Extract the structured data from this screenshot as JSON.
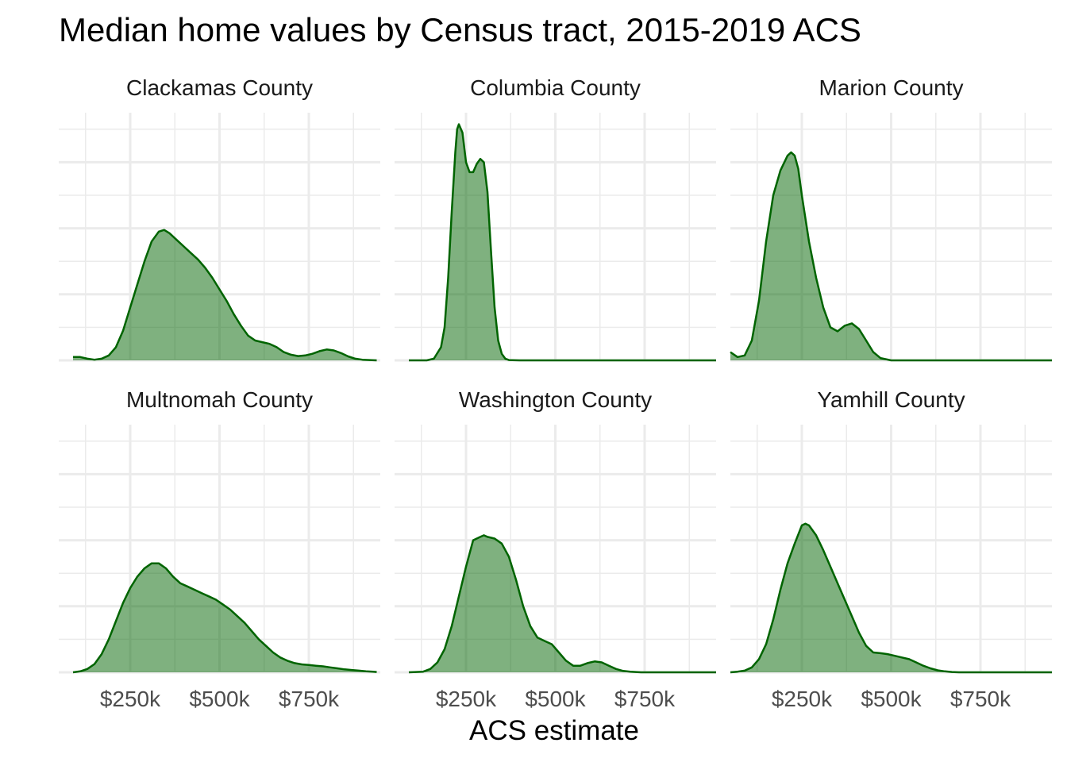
{
  "chart_data": {
    "type": "area",
    "subtype": "faceted-density",
    "title": "Median home values by Census tract, 2015-2019 ACS",
    "xlabel": "ACS estimate",
    "ylabel": "",
    "xlim": [
      50000,
      950000
    ],
    "ylim": [
      0,
      7.5
    ],
    "x_ticks": [
      250000,
      500000,
      750000
    ],
    "x_tick_labels": [
      "$250k",
      "$500k",
      "$750k"
    ],
    "y_axis_labels_shown": false,
    "grid": true,
    "fill_color": "#006400",
    "fill_opacity": 0.5,
    "line_color": "#006400",
    "facet_layout": {
      "rows": 2,
      "cols": 3
    },
    "panels": [
      {
        "name": "Clackamas County",
        "x": [
          90000,
          110000,
          130000,
          150000,
          170000,
          190000,
          210000,
          230000,
          250000,
          270000,
          290000,
          310000,
          330000,
          345000,
          360000,
          380000,
          400000,
          420000,
          440000,
          460000,
          480000,
          500000,
          520000,
          540000,
          560000,
          580000,
          600000,
          620000,
          640000,
          660000,
          680000,
          700000,
          720000,
          740000,
          760000,
          780000,
          800000,
          820000,
          840000,
          860000,
          880000,
          900000,
          920000,
          940000
        ],
        "y": [
          0.1,
          0.1,
          0.05,
          0.02,
          0.05,
          0.15,
          0.4,
          0.9,
          1.6,
          2.3,
          3.0,
          3.6,
          3.9,
          3.95,
          3.85,
          3.65,
          3.45,
          3.25,
          3.05,
          2.8,
          2.5,
          2.15,
          1.8,
          1.4,
          1.05,
          0.75,
          0.6,
          0.55,
          0.5,
          0.4,
          0.25,
          0.17,
          0.13,
          0.15,
          0.2,
          0.28,
          0.33,
          0.3,
          0.22,
          0.12,
          0.05,
          0.02,
          0.01,
          0.0
        ]
      },
      {
        "name": "Columbia County",
        "x": [
          90000,
          140000,
          160000,
          180000,
          190000,
          200000,
          210000,
          220000,
          225000,
          230000,
          240000,
          250000,
          260000,
          270000,
          280000,
          290000,
          300000,
          310000,
          320000,
          330000,
          340000,
          350000,
          360000,
          370000,
          400000,
          950000
        ],
        "y": [
          0.0,
          0.0,
          0.05,
          0.4,
          1.0,
          2.5,
          4.5,
          6.3,
          7.0,
          7.15,
          6.9,
          6.0,
          5.7,
          5.7,
          5.95,
          6.1,
          6.0,
          5.1,
          3.3,
          1.6,
          0.6,
          0.2,
          0.05,
          0.01,
          0.0,
          0.0
        ]
      },
      {
        "name": "Marion County",
        "x": [
          50000,
          70000,
          90000,
          110000,
          130000,
          150000,
          170000,
          190000,
          210000,
          220000,
          230000,
          240000,
          250000,
          270000,
          290000,
          310000,
          330000,
          350000,
          370000,
          390000,
          410000,
          430000,
          450000,
          470000,
          500000,
          950000
        ],
        "y": [
          0.25,
          0.1,
          0.15,
          0.6,
          1.8,
          3.6,
          5.0,
          5.75,
          6.2,
          6.3,
          6.2,
          5.8,
          5.0,
          3.6,
          2.5,
          1.6,
          1.0,
          0.88,
          1.05,
          1.12,
          0.95,
          0.6,
          0.25,
          0.07,
          0.0,
          0.0
        ]
      },
      {
        "name": "Multnomah County",
        "x": [
          90000,
          110000,
          130000,
          150000,
          170000,
          190000,
          210000,
          230000,
          250000,
          270000,
          290000,
          310000,
          330000,
          350000,
          370000,
          390000,
          410000,
          430000,
          450000,
          470000,
          490000,
          510000,
          530000,
          550000,
          570000,
          590000,
          610000,
          630000,
          650000,
          670000,
          690000,
          710000,
          730000,
          750000,
          770000,
          790000,
          810000,
          830000,
          850000,
          870000,
          890000,
          910000,
          930000,
          940000
        ],
        "y": [
          0.0,
          0.03,
          0.1,
          0.25,
          0.55,
          1.0,
          1.55,
          2.1,
          2.55,
          2.9,
          3.15,
          3.3,
          3.3,
          3.15,
          2.9,
          2.7,
          2.6,
          2.5,
          2.4,
          2.3,
          2.2,
          2.05,
          1.9,
          1.7,
          1.5,
          1.25,
          1.0,
          0.8,
          0.6,
          0.45,
          0.35,
          0.28,
          0.24,
          0.22,
          0.2,
          0.18,
          0.15,
          0.12,
          0.09,
          0.07,
          0.05,
          0.03,
          0.02,
          0.01
        ]
      },
      {
        "name": "Washington County",
        "x": [
          90000,
          130000,
          150000,
          170000,
          190000,
          210000,
          230000,
          250000,
          270000,
          290000,
          300000,
          310000,
          330000,
          350000,
          370000,
          390000,
          410000,
          430000,
          450000,
          470000,
          490000,
          510000,
          530000,
          550000,
          570000,
          590000,
          610000,
          630000,
          650000,
          670000,
          690000,
          710000,
          740000,
          950000
        ],
        "y": [
          0.0,
          0.02,
          0.1,
          0.3,
          0.7,
          1.4,
          2.3,
          3.2,
          4.0,
          4.1,
          4.15,
          4.1,
          4.05,
          3.9,
          3.5,
          2.8,
          2.0,
          1.4,
          1.05,
          0.95,
          0.85,
          0.6,
          0.35,
          0.2,
          0.2,
          0.28,
          0.33,
          0.3,
          0.2,
          0.1,
          0.04,
          0.02,
          0.0,
          0.0
        ]
      },
      {
        "name": "Yamhill County",
        "x": [
          50000,
          70000,
          90000,
          110000,
          130000,
          150000,
          170000,
          190000,
          210000,
          230000,
          250000,
          260000,
          270000,
          290000,
          310000,
          330000,
          350000,
          370000,
          390000,
          410000,
          430000,
          450000,
          470000,
          490000,
          510000,
          530000,
          550000,
          570000,
          590000,
          610000,
          630000,
          650000,
          670000,
          690000,
          710000,
          950000
        ],
        "y": [
          0.0,
          0.02,
          0.05,
          0.15,
          0.4,
          0.85,
          1.6,
          2.5,
          3.3,
          3.9,
          4.45,
          4.5,
          4.45,
          4.15,
          3.7,
          3.2,
          2.7,
          2.2,
          1.7,
          1.2,
          0.8,
          0.6,
          0.58,
          0.55,
          0.5,
          0.45,
          0.4,
          0.3,
          0.2,
          0.12,
          0.06,
          0.03,
          0.01,
          0.0,
          0.0,
          0.0
        ]
      }
    ]
  }
}
